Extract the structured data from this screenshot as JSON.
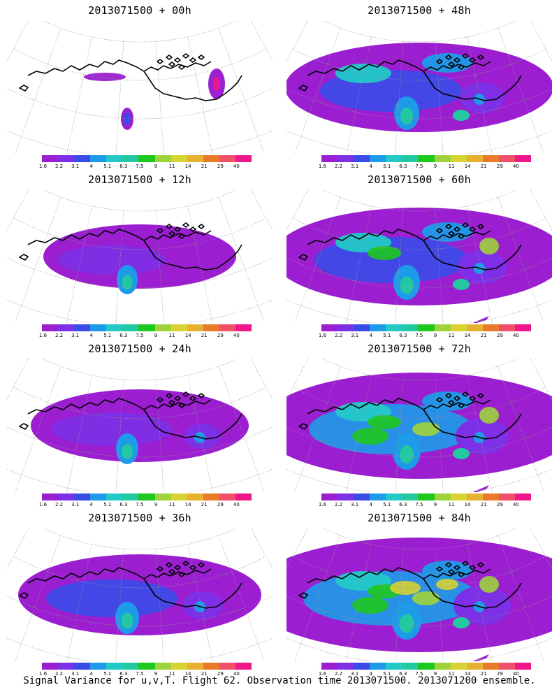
{
  "panels": [
    {
      "title": "2013071500 + 00h",
      "level": 0
    },
    {
      "title": "2013071500 + 48h",
      "level": 4
    },
    {
      "title": "2013071500 + 12h",
      "level": 1
    },
    {
      "title": "2013071500 + 60h",
      "level": 5
    },
    {
      "title": "2013071500 + 24h",
      "level": 2
    },
    {
      "title": "2013071500 + 72h",
      "level": 6
    },
    {
      "title": "2013071500 + 36h",
      "level": 3
    },
    {
      "title": "2013071500 + 84h",
      "level": 7
    }
  ],
  "legend": {
    "colors": [
      "#9b1fd0",
      "#7d30e6",
      "#3a4be8",
      "#1e9be8",
      "#22c9c9",
      "#22c9a0",
      "#1ec81e",
      "#9ed43a",
      "#d8d232",
      "#e8b030",
      "#e87a2a",
      "#f0506a",
      "#ee1888"
    ],
    "ticks": [
      "1.6",
      "2.2",
      "3.1",
      "4",
      "5.1",
      "6.3",
      "7.5",
      "9",
      "11",
      "14",
      "21",
      "29",
      "40"
    ]
  },
  "footer": "Signal Variance for u,v,T. Flight 62. Observation time 2013071500. 2013071200 ensemble."
}
